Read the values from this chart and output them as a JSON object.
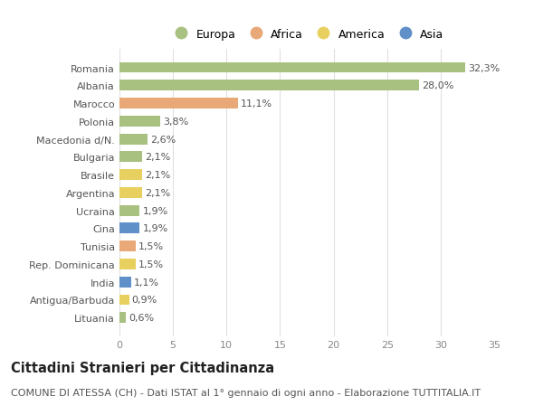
{
  "categories": [
    "Lituania",
    "Antigua/Barbuda",
    "India",
    "Rep. Dominicana",
    "Tunisia",
    "Cina",
    "Ucraina",
    "Argentina",
    "Brasile",
    "Bulgaria",
    "Macedonia d/N.",
    "Polonia",
    "Marocco",
    "Albania",
    "Romania"
  ],
  "values": [
    0.6,
    0.9,
    1.1,
    1.5,
    1.5,
    1.9,
    1.9,
    2.1,
    2.1,
    2.1,
    2.6,
    3.8,
    11.1,
    28.0,
    32.3
  ],
  "continents": [
    "Europa",
    "America",
    "Asia",
    "America",
    "Africa",
    "Asia",
    "Europa",
    "America",
    "America",
    "Europa",
    "Europa",
    "Europa",
    "Africa",
    "Europa",
    "Europa"
  ],
  "labels": [
    "0,6%",
    "0,9%",
    "1,1%",
    "1,5%",
    "1,5%",
    "1,9%",
    "1,9%",
    "2,1%",
    "2,1%",
    "2,1%",
    "2,6%",
    "3,8%",
    "11,1%",
    "28,0%",
    "32,3%"
  ],
  "continent_colors": {
    "Europa": "#a8c080",
    "Africa": "#e8a878",
    "America": "#e8d060",
    "Asia": "#6090c8"
  },
  "legend_items": [
    "Europa",
    "Africa",
    "America",
    "Asia"
  ],
  "legend_colors": [
    "#a8c080",
    "#e8a878",
    "#e8d060",
    "#6090c8"
  ],
  "xlim": [
    0,
    35
  ],
  "xticks": [
    0,
    5,
    10,
    15,
    20,
    25,
    30,
    35
  ],
  "title": "Cittadini Stranieri per Cittadinanza",
  "subtitle": "COMUNE DI ATESSA (CH) - Dati ISTAT al 1° gennaio di ogni anno - Elaborazione TUTTITALIA.IT",
  "bg_color": "#ffffff",
  "grid_color": "#e0e0e0",
  "bar_height": 0.6,
  "title_fontsize": 10.5,
  "subtitle_fontsize": 8,
  "label_fontsize": 8,
  "tick_fontsize": 8,
  "legend_fontsize": 9
}
